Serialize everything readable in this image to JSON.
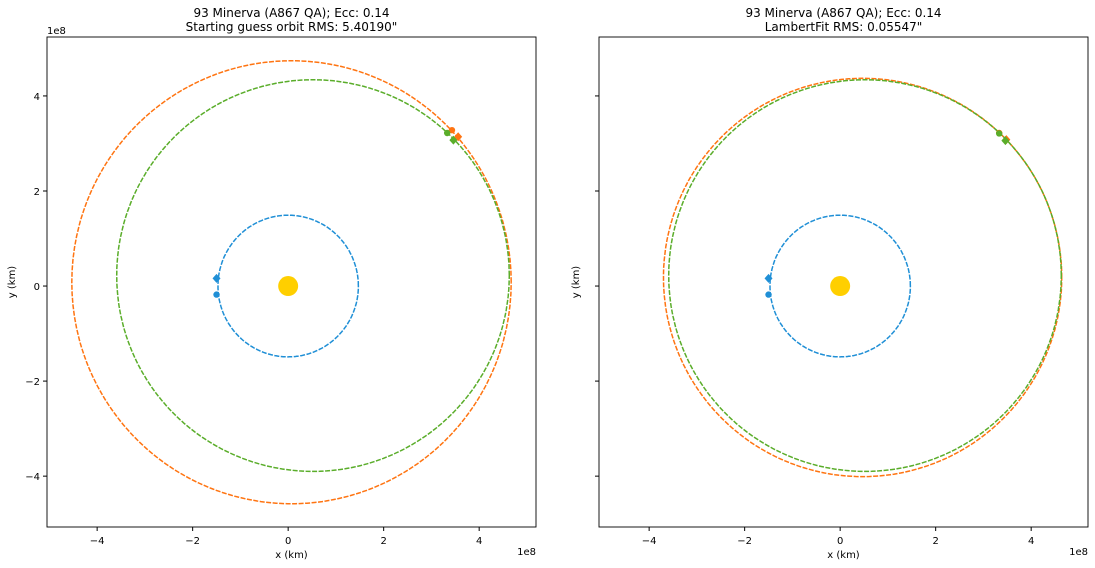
{
  "chart_data": [
    {
      "type": "line",
      "title_line1": "93 Minerva (A867 QA); Ecc: 0.14",
      "title_line2": "Starting guess orbit RMS: 5.40190\"",
      "xlabel": "x (km)",
      "ylabel": "y (km)",
      "x_scale_label": "1e8",
      "y_scale_label": "1e8",
      "xlim": [
        -5.05,
        5.19
      ],
      "ylim": [
        -5.07,
        5.24
      ],
      "xticks": [
        -4,
        -2,
        0,
        2,
        4
      ],
      "yticks": [
        -4,
        -2,
        0,
        2,
        4
      ],
      "show_ytick_labels": true,
      "orbits": [
        {
          "name": "Earth orbit",
          "color": "#1f8fd6",
          "cx": 0,
          "cy": 0,
          "rx": 1.47,
          "ry": 1.49
        },
        {
          "name": "fitted orbit",
          "color": "#ff7411",
          "cx": 0.07,
          "cy": 0.08,
          "rx": 4.6,
          "ry": 4.66
        },
        {
          "name": "true orbit",
          "color": "#5aad2a",
          "cx": 0.52,
          "cy": 0.22,
          "rx": 4.11,
          "ry": 4.12
        }
      ],
      "points": [
        {
          "color": "#1f8fd6",
          "x": -1.5,
          "y": 0.16,
          "marker": "diamond"
        },
        {
          "color": "#1f8fd6",
          "x": -1.5,
          "y": -0.18,
          "marker": "dot"
        },
        {
          "color": "#ff7411",
          "x": 3.43,
          "y": 3.28,
          "marker": "dot"
        },
        {
          "color": "#ff7411",
          "x": 3.56,
          "y": 3.14,
          "marker": "diamond"
        },
        {
          "color": "#5aad2a",
          "x": 3.33,
          "y": 3.22,
          "marker": "dot"
        },
        {
          "color": "#5aad2a",
          "x": 3.46,
          "y": 3.07,
          "marker": "diamond"
        }
      ],
      "sun": {
        "x": 0,
        "y": 0,
        "color": "#ffcf00"
      }
    },
    {
      "type": "line",
      "title_line1": "93 Minerva (A867 QA); Ecc: 0.14",
      "title_line2": "LambertFit RMS: 0.05547\"",
      "xlabel": "x (km)",
      "ylabel": "y (km)",
      "x_scale_label": "1e8",
      "y_scale_label": "",
      "xlim": [
        -5.05,
        5.19
      ],
      "ylim": [
        -5.07,
        5.24
      ],
      "xticks": [
        -4,
        -2,
        0,
        2,
        4
      ],
      "yticks": [
        -4,
        -2,
        0,
        2,
        4
      ],
      "show_ytick_labels": false,
      "orbits": [
        {
          "name": "Earth orbit",
          "color": "#1f8fd6",
          "cx": 0,
          "cy": 0,
          "rx": 1.47,
          "ry": 1.49
        },
        {
          "name": "fitted orbit",
          "color": "#ff7411",
          "cx": 0.47,
          "cy": 0.18,
          "rx": 4.17,
          "ry": 4.19
        },
        {
          "name": "true orbit",
          "color": "#5aad2a",
          "cx": 0.52,
          "cy": 0.22,
          "rx": 4.11,
          "ry": 4.12
        }
      ],
      "points": [
        {
          "color": "#1f8fd6",
          "x": -1.5,
          "y": 0.16,
          "marker": "diamond"
        },
        {
          "color": "#1f8fd6",
          "x": -1.5,
          "y": -0.18,
          "marker": "dot"
        },
        {
          "color": "#ff7411",
          "x": 3.33,
          "y": 3.22,
          "marker": "dot"
        },
        {
          "color": "#ff7411",
          "x": 3.48,
          "y": 3.08,
          "marker": "diamond"
        },
        {
          "color": "#5aad2a",
          "x": 3.33,
          "y": 3.21,
          "marker": "dot"
        },
        {
          "color": "#5aad2a",
          "x": 3.46,
          "y": 3.06,
          "marker": "diamond"
        }
      ],
      "sun": {
        "x": 0,
        "y": 0,
        "color": "#ffcf00"
      }
    }
  ]
}
